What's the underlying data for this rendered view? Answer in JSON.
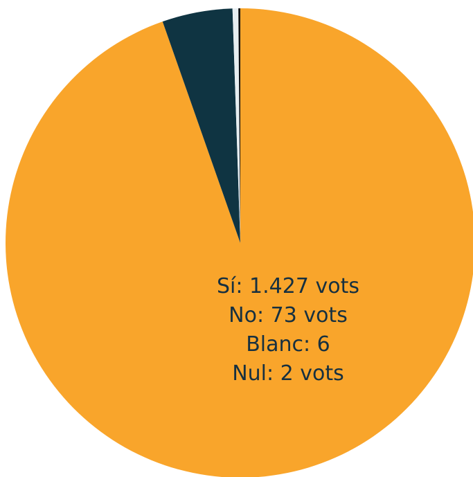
{
  "chart_data": {
    "type": "pie",
    "title": "",
    "slices": [
      {
        "label": "Sí",
        "value": 1427,
        "color": "#f9a52b"
      },
      {
        "label": "No",
        "value": 73,
        "color": "#0f3442"
      },
      {
        "label": "Blanc",
        "value": 6,
        "color": "#e7eef1"
      },
      {
        "label": "Nul",
        "value": 2,
        "color": "#111111"
      }
    ],
    "labels": [
      "Sí: 1.427 vots",
      "No: 73 vots",
      "Blanc: 6",
      "Nul: 2 vots"
    ]
  }
}
